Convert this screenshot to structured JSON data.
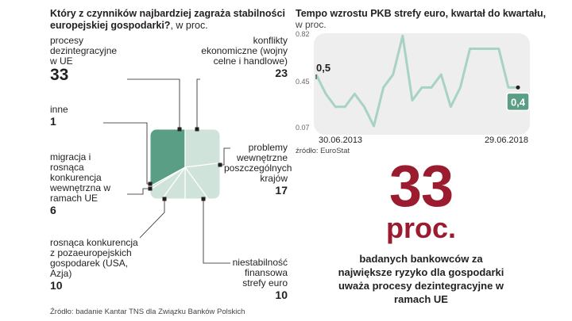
{
  "left_chart": {
    "title": "Który z czynników najbardziej zagraża stabilności europejskiej gospodarki?",
    "unit": ", w proc.",
    "source": "Źródło: badanie Kantar TNS dla Związku Banków Polskich"
  },
  "right_chart": {
    "title": "Tempo wzrostu PKB strefy euro, kwartał do kwartału,",
    "unit": "w proc.",
    "source": "źródło: EuroStat"
  },
  "highlight": {
    "number": "33",
    "unit": "proc.",
    "description": "badanych bankowców za największe ryzyko dla gospodarki uważa procesy dezintegracyjne w ramach UE"
  },
  "chart_data": [
    {
      "type": "pie",
      "title": "Który z czynników najbardziej zagraża stabilności europejskiej gospodarki?",
      "unit": "proc.",
      "highlight_color": "#5a9e85",
      "base_color": "#cfe3da",
      "slices": [
        {
          "label": "procesy dezintegracyjne w UE",
          "value": 33,
          "value_label": "33",
          "highlight": true
        },
        {
          "label": "konflikty ekonomiczne (wojny celne i handlowe)",
          "value": 23,
          "value_label": "23"
        },
        {
          "label": "problemy wewnętrzne poszczególnych krajów",
          "value": 17,
          "value_label": "17"
        },
        {
          "label": "niestabilność finansowa strefy euro",
          "value": 10,
          "value_label": "10"
        },
        {
          "label": "rosnąca konkurencja z pozaeuropejskich gospodarek (USA, Azja)",
          "value": 10,
          "value_label": "10"
        },
        {
          "label": "migracja i rosnąca konkurencja wewnętrzna w ramach UE",
          "value": 6,
          "value_label": "6"
        },
        {
          "label": "inne",
          "value": 1,
          "value_label": "1"
        }
      ]
    },
    {
      "type": "line",
      "title": "Tempo wzrostu PKB strefy euro, kwartał do kwartału,",
      "ylabel": "w proc.",
      "x_start_label": "30.06.2013",
      "x_end_label": "29.06.2018",
      "y_ticks": [
        {
          "v": 0.82,
          "label": "0.82"
        },
        {
          "v": 0.45,
          "label": "0.45"
        },
        {
          "v": 0.07,
          "label": "0.07"
        }
      ],
      "ylim": [
        0.07,
        0.82
      ],
      "first_label": "0,5",
      "last_label": "0,4",
      "line_color": "#a8d3c2",
      "badge_color": "#5a9e85",
      "values": [
        0.5,
        0.35,
        0.25,
        0.25,
        0.35,
        0.25,
        0.1,
        0.4,
        0.5,
        0.8,
        0.3,
        0.4,
        0.4,
        0.5,
        0.25,
        0.4,
        0.7,
        0.7,
        0.7,
        0.7,
        0.4,
        0.4
      ]
    }
  ]
}
